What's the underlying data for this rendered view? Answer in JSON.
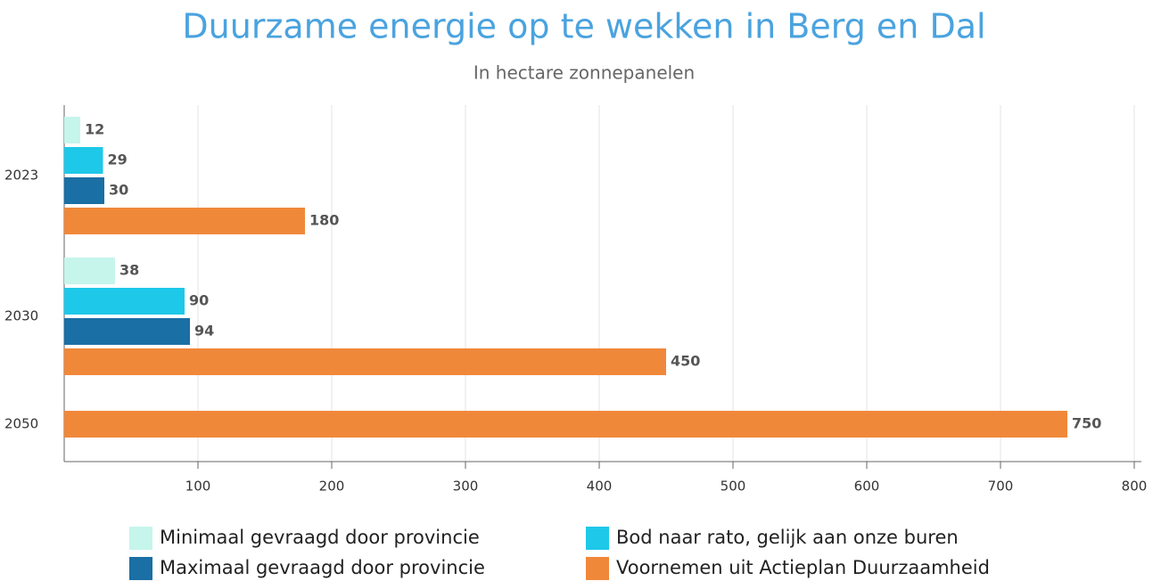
{
  "chart_data": {
    "type": "bar",
    "orientation": "horizontal",
    "title": "Duurzame energie op te wekken in Berg en Dal",
    "subtitle": "In hectare zonnepanelen",
    "categories": [
      "2023",
      "2030",
      "2050"
    ],
    "series": [
      {
        "name": "Minimaal gevraagd door provincie",
        "color": "#c6f5ec",
        "values": [
          12,
          38,
          null
        ]
      },
      {
        "name": "Bod naar rato, gelijk aan onze buren",
        "color": "#1ec8e8",
        "values": [
          29,
          90,
          null
        ]
      },
      {
        "name": "Maximaal gevraagd door provincie",
        "color": "#1a6fa4",
        "values": [
          30,
          94,
          null
        ]
      },
      {
        "name": "Voornemen uit Actieplan Duurzaamheid",
        "color": "#f0883a",
        "values": [
          180,
          450,
          750
        ]
      }
    ],
    "xlim": [
      0,
      800
    ],
    "xticks": [
      100,
      200,
      300,
      400,
      500,
      600,
      700,
      800
    ],
    "grid": true,
    "data_labels": true,
    "legend": "bottom"
  }
}
